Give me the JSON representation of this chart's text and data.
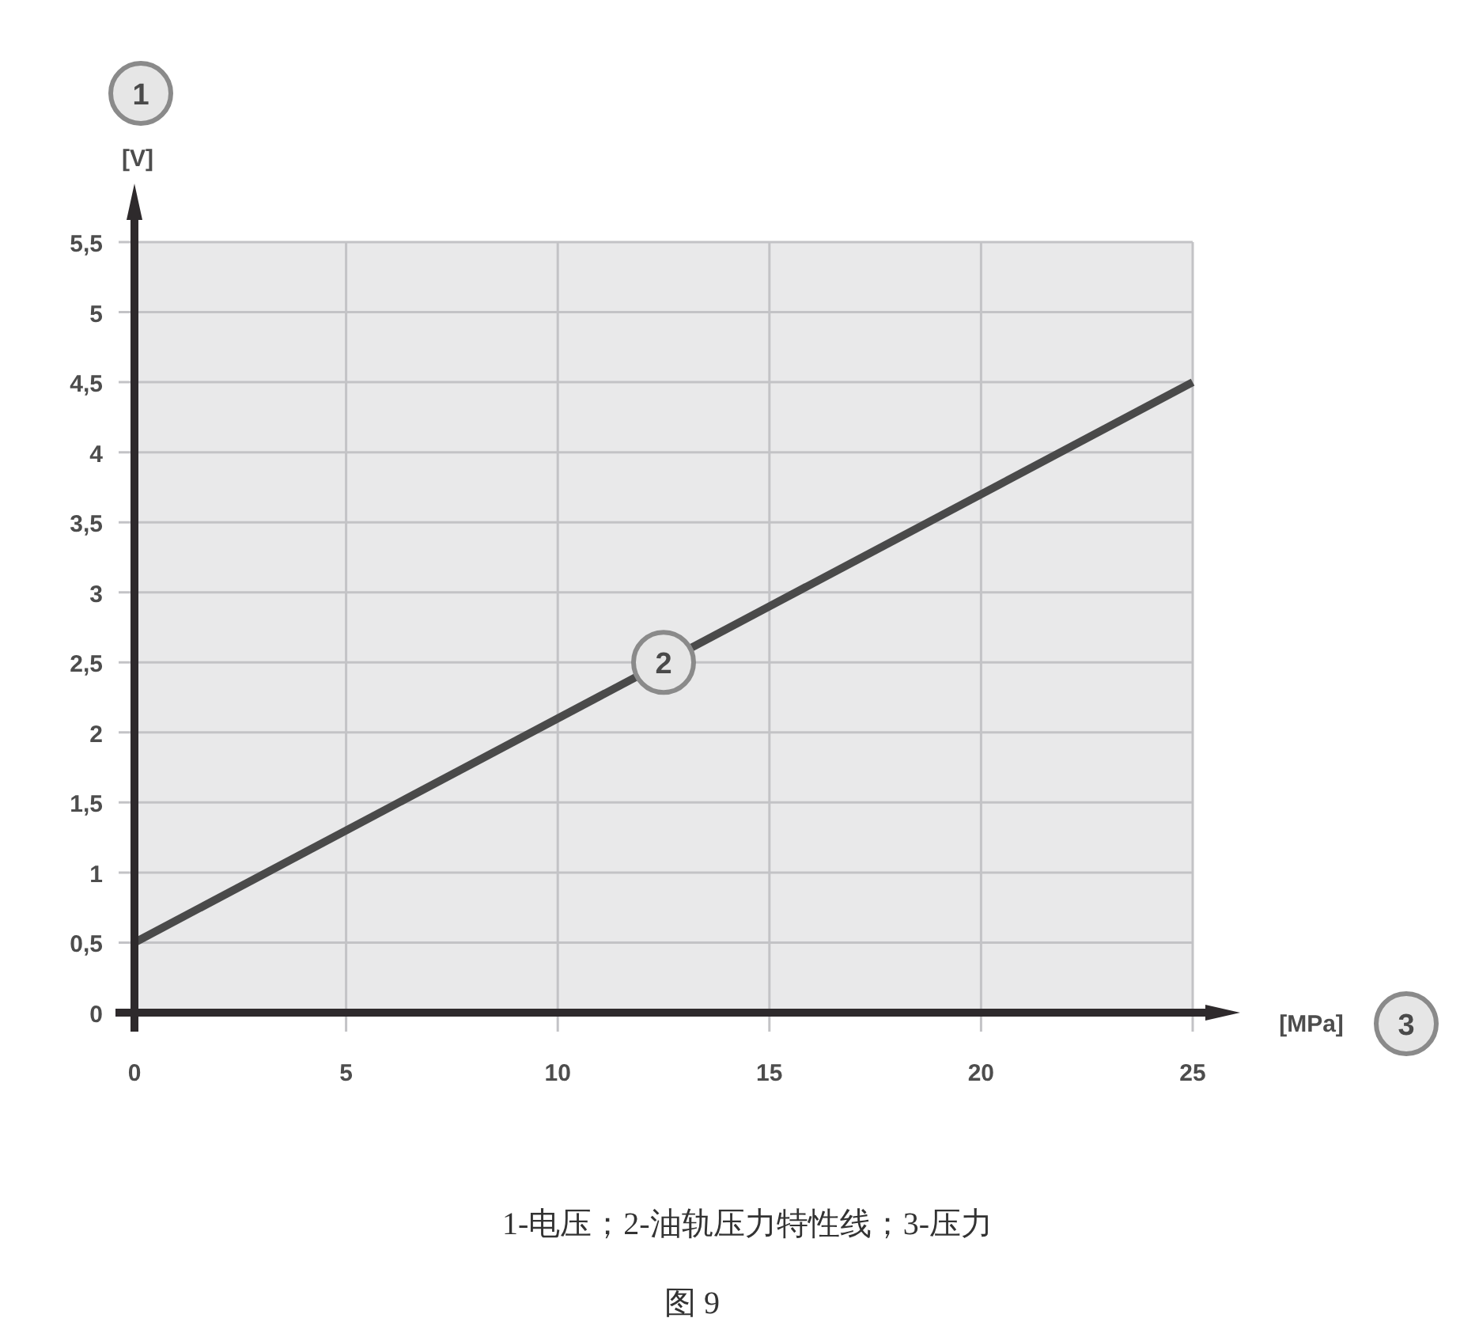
{
  "chart_data": {
    "type": "line",
    "xlabel": "[MPa]",
    "ylabel": "[V]",
    "xlim": [
      0,
      25
    ],
    "xticks": [
      0,
      5,
      10,
      15,
      20,
      25
    ],
    "ylim": [
      0,
      5.5
    ],
    "yticks": [
      0,
      {
        "value": 0.5,
        "label": "0,5"
      },
      1,
      {
        "value": 1.5,
        "label": "1,5"
      },
      2,
      {
        "value": 2.5,
        "label": "2,5"
      },
      3,
      {
        "value": 3.5,
        "label": "3,5"
      },
      4,
      {
        "value": 4.5,
        "label": "4,5"
      },
      5,
      {
        "value": 5.5,
        "label": "5,5"
      }
    ],
    "grid": true,
    "series": [
      {
        "color": "#4a4a4a",
        "x": [
          0,
          25
        ],
        "values": [
          0.5,
          4.5
        ]
      }
    ],
    "annotations": [
      "1",
      {
        "text": "2",
        "x": 12.5,
        "y": 2.5
      },
      "3",
      "1-电压；2-油轨压力特性线；3-压力",
      "图 9"
    ]
  }
}
